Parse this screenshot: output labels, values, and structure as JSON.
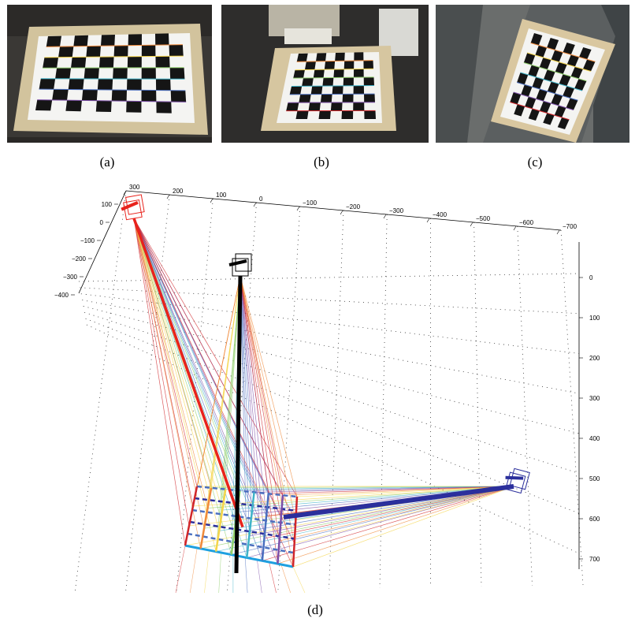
{
  "figure": {
    "panels": [
      {
        "id": "a",
        "label": "(a)",
        "kind": "photo"
      },
      {
        "id": "b",
        "label": "(b)",
        "kind": "photo"
      },
      {
        "id": "c",
        "label": "(c)",
        "kind": "photo"
      },
      {
        "id": "d",
        "label": "(d)",
        "kind": "3d-plot"
      }
    ],
    "colors": {
      "camera_left": "#e8231c",
      "camera_center": "#000000",
      "camera_right": "#2b2f9c",
      "board_front_edge": "#1ea0e0",
      "wood": "#d6c7a2",
      "ray_palette": [
        "#d1262a",
        "#f08a3b",
        "#f5d54a",
        "#8fcf6b",
        "#3fb3c9",
        "#4b6fbf",
        "#7d4fa8"
      ]
    }
  },
  "chart_data": {
    "type": "3d-camera-calibration",
    "axis_top": {
      "ticks": [
        "300",
        "200",
        "100",
        "0",
        "−100",
        "−200",
        "−300",
        "−400",
        "−500",
        "−600",
        "−700"
      ]
    },
    "axis_left": {
      "ticks": [
        "100",
        "0",
        "−100",
        "−200",
        "−300",
        "−400"
      ]
    },
    "axis_right": {
      "ticks": [
        "0",
        "100",
        "200",
        "300",
        "400",
        "500",
        "600",
        "700"
      ]
    },
    "grid": true
  }
}
